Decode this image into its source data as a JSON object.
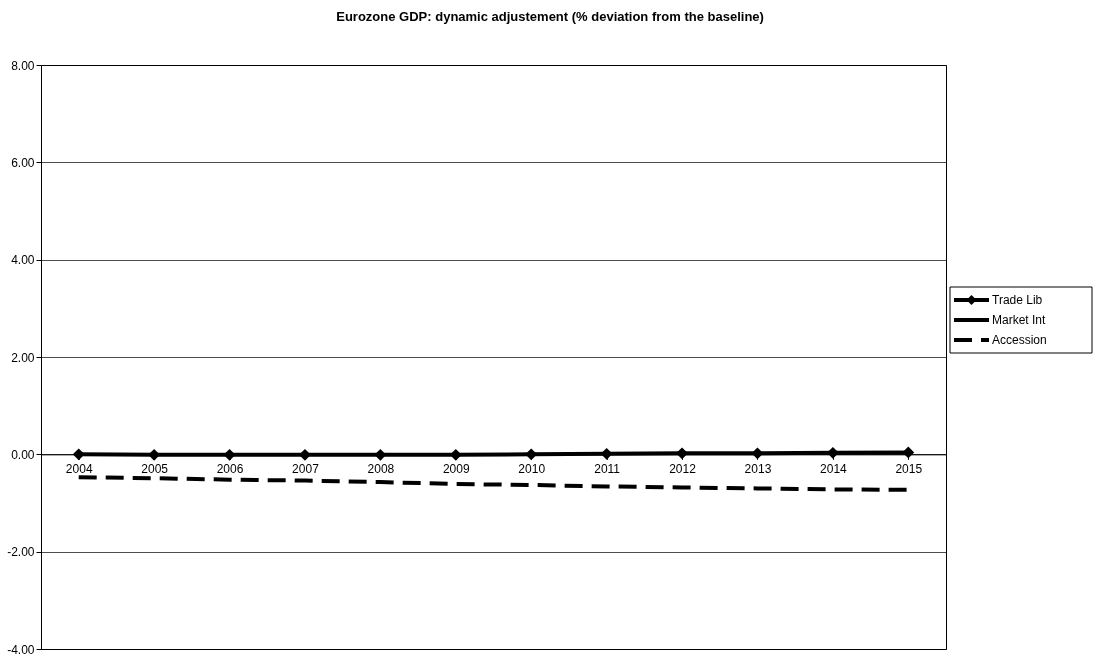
{
  "chart_data": {
    "type": "line",
    "title": "Eurozone GDP: dynamic adjustement (% deviation from the baseline)",
    "categories": [
      "2004",
      "2005",
      "2006",
      "2007",
      "2008",
      "2009",
      "2010",
      "2011",
      "2012",
      "2013",
      "2014",
      "2015"
    ],
    "series": [
      {
        "name": "Trade Lib",
        "color": "#000000",
        "marker": "diamond",
        "line_style": "solid",
        "values": [
          0.0,
          -0.01,
          -0.01,
          -0.01,
          -0.01,
          -0.01,
          0.0,
          0.01,
          0.02,
          0.02,
          0.03,
          0.04
        ]
      },
      {
        "name": "Market Int",
        "color": "#000000",
        "marker": "none",
        "line_style": "solid",
        "values": [
          null,
          null,
          null,
          null,
          null,
          null,
          null,
          null,
          null,
          null,
          null,
          null
        ]
      },
      {
        "name": "Accession",
        "color": "#000000",
        "marker": "none",
        "line_style": "dashed",
        "values": [
          -0.47,
          -0.49,
          -0.52,
          -0.54,
          -0.57,
          -0.61,
          -0.63,
          -0.66,
          -0.68,
          -0.7,
          -0.72,
          -0.73
        ]
      }
    ],
    "ylim": [
      -4,
      8
    ],
    "yticks": [
      {
        "value": -4,
        "label": "-4.00"
      },
      {
        "value": -2,
        "label": "-2.00"
      },
      {
        "value": 0,
        "label": "0.00"
      },
      {
        "value": 2,
        "label": "2.00"
      },
      {
        "value": 4,
        "label": "4.00"
      },
      {
        "value": 6,
        "label": "6.00"
      },
      {
        "value": 8,
        "label": "8.00"
      }
    ],
    "grid": "y",
    "legend": "right"
  }
}
